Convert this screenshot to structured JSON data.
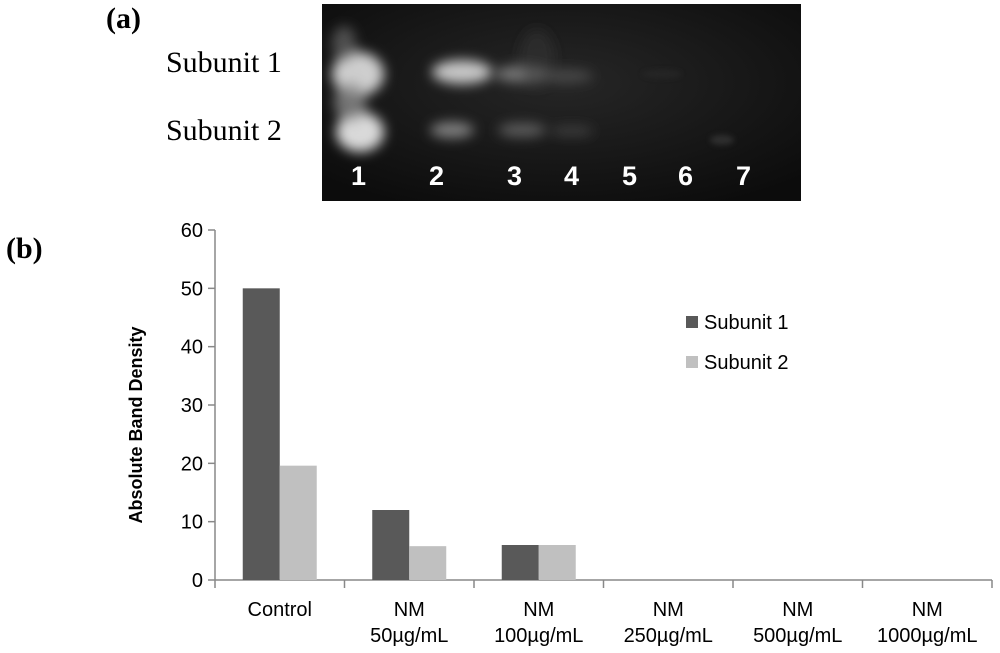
{
  "panel_a": {
    "label": "(a)",
    "row_labels": [
      "Subunit 1",
      "Subunit 2"
    ],
    "lane_numbers": [
      "1",
      "2",
      "3",
      "4",
      "5",
      "6",
      "7"
    ]
  },
  "panel_b": {
    "label": "(b)"
  },
  "colors": {
    "subunit1": "#595959",
    "subunit2": "#c0c0c0",
    "axis": "#888888"
  },
  "chart_data": {
    "type": "bar",
    "categories": [
      [
        "Control"
      ],
      [
        "NM",
        "50µg/mL"
      ],
      [
        "NM",
        "100µg/mL"
      ],
      [
        "NM",
        "250µg/mL"
      ],
      [
        "NM",
        "500µg/mL"
      ],
      [
        "NM",
        "1000µg/mL"
      ]
    ],
    "series": [
      {
        "name": "Subunit 1",
        "values": [
          50,
          12,
          6,
          0,
          0,
          0
        ]
      },
      {
        "name": "Subunit 2",
        "values": [
          19.6,
          5.8,
          6,
          0,
          0,
          0
        ]
      }
    ],
    "xlabel": "",
    "ylabel": "Absolute Band Density",
    "ylim": [
      0,
      60
    ],
    "yticks": [
      0,
      10,
      20,
      30,
      40,
      50,
      60
    ],
    "grid": false,
    "legend": "right"
  }
}
